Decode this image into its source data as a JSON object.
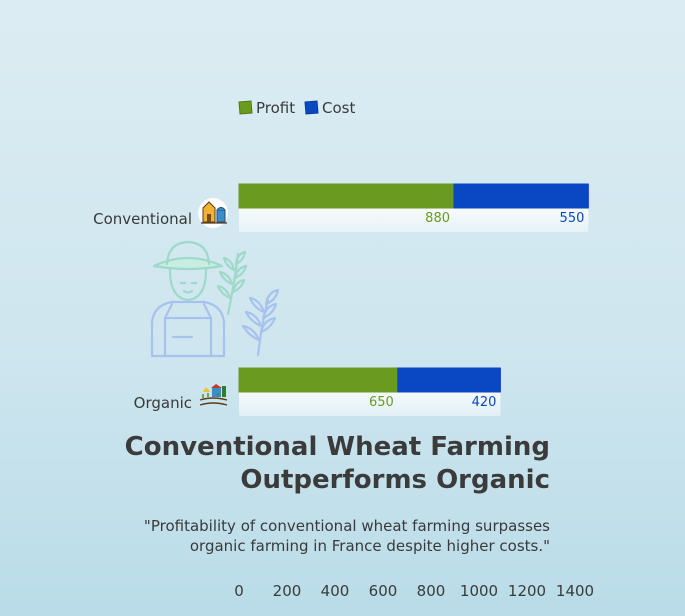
{
  "chart_data": {
    "type": "bar",
    "orientation": "horizontal",
    "stacked": true,
    "categories": [
      "Conventional",
      "Organic"
    ],
    "series": [
      {
        "name": "Profit",
        "values": [
          880,
          650
        ],
        "color": "#6a9a1f"
      },
      {
        "name": "Cost",
        "values": [
          550,
          420
        ],
        "color": "#0a47c2"
      }
    ],
    "title_lines": [
      "Conventional Wheat Farming",
      "Outperforms Organic"
    ],
    "subtitle_lines": [
      "\"Profitability of conventional wheat farming surpasses",
      "organic farming in France despite higher costs.\""
    ],
    "xticks": [
      "0",
      "200",
      "400",
      "600",
      "800",
      "1000",
      "1200",
      "1400"
    ],
    "xlim": [
      0,
      1450
    ],
    "legend_position": "top-left",
    "grid": false
  },
  "icons": {
    "conventional": "farm-buildings-icon",
    "organic": "organic-farm-icon",
    "decoration": "farmer-with-wheat-icon"
  }
}
